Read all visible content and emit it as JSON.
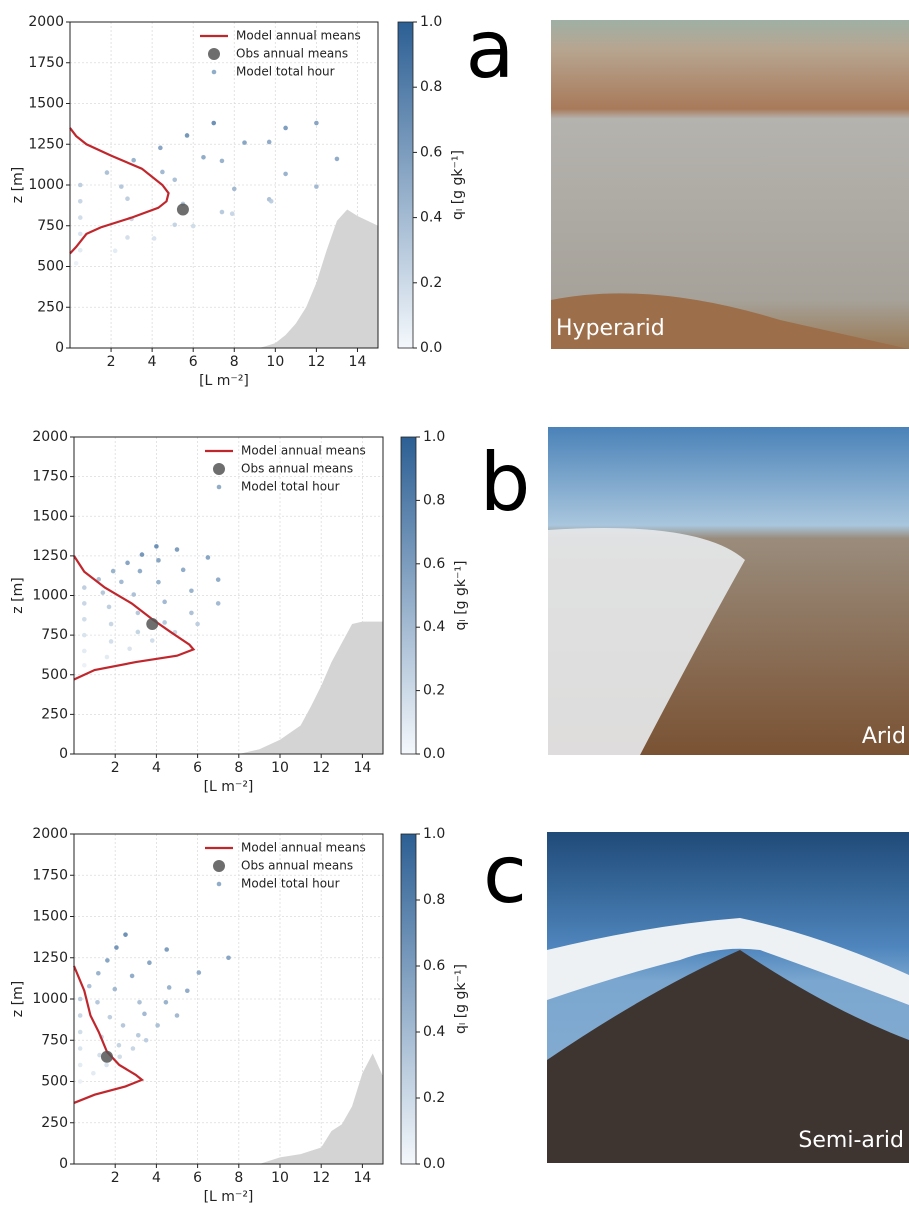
{
  "chart_data": [
    {
      "type": "scatter",
      "letter": "a",
      "photo_label": "Hyperarid",
      "xlabel": "[L m⁻²]",
      "ylabel": "z [m]",
      "xlim": [
        0,
        15
      ],
      "xticks": [
        2,
        4,
        6,
        8,
        10,
        12,
        14
      ],
      "ylim": [
        0,
        2000
      ],
      "yticks": [
        0,
        250,
        500,
        750,
        1000,
        1250,
        1500,
        1750,
        2000
      ],
      "grid": true,
      "legend": "upper right",
      "terrain": {
        "color": "#d4d4d4",
        "x": [
          9.2,
          9.5,
          10,
          10.5,
          11,
          11.5,
          12,
          12.5,
          13,
          13.5,
          14,
          14.5,
          15
        ],
        "values": [
          0,
          10,
          30,
          80,
          150,
          250,
          400,
          600,
          780,
          850,
          810,
          780,
          750
        ]
      },
      "series": [
        {
          "name": "Model annual means",
          "kind": "line",
          "color": "#c0272d",
          "x": [
            0,
            0.3,
            0.8,
            2,
            3.5,
            4.5,
            4.8,
            4.7,
            4.3,
            3,
            1.5,
            0.8,
            0.3,
            0
          ],
          "values": [
            1350,
            1300,
            1250,
            1180,
            1100,
            1000,
            950,
            900,
            860,
            800,
            740,
            700,
            620,
            580
          ]
        },
        {
          "name": "Obs annual means",
          "kind": "point",
          "color": "#555555",
          "x": [
            5.5
          ],
          "values": [
            850
          ]
        },
        {
          "name": "Model total hour",
          "kind": "scatter",
          "x": [
            0.5,
            1.8,
            3.1,
            4.4,
            5.7,
            7,
            0.5,
            2.5,
            4.5,
            6.5,
            8.5,
            10.5,
            0.5,
            2.8,
            5.1,
            7.4,
            9.7,
            12,
            0.5,
            3,
            5.5,
            8,
            10.5,
            13,
            0.5,
            2.8,
            5.1,
            7.4,
            9.7,
            12,
            0.3,
            2.2,
            4.1,
            6,
            7.9,
            9.8
          ],
          "values": [
            1000,
            1076,
            1152,
            1228,
            1304,
            1380,
            900,
            990,
            1080,
            1170,
            1260,
            1350,
            800,
            916,
            1032,
            1148,
            1264,
            1380,
            700,
            792,
            884,
            976,
            1068,
            1160,
            600,
            678,
            756,
            834,
            912,
            990,
            520,
            596,
            672,
            748,
            824,
            900
          ],
          "c": [
            0.3,
            0.4,
            0.5,
            0.6,
            0.7,
            0.75,
            0.25,
            0.35,
            0.45,
            0.55,
            0.6,
            0.65,
            0.2,
            0.3,
            0.4,
            0.5,
            0.55,
            0.6,
            0.15,
            0.25,
            0.35,
            0.45,
            0.5,
            0.55,
            0.1,
            0.18,
            0.26,
            0.34,
            0.4,
            0.45,
            0.05,
            0.1,
            0.15,
            0.2,
            0.25,
            0.3
          ]
        }
      ],
      "colorbar": {
        "label": "qₗ [g gk⁻¹]",
        "colormap": [
          "#f4f8fc",
          "#2c5f94"
        ],
        "lim": [
          0,
          1
        ],
        "ticks": [
          {
            "value": 0,
            "label": "0.0"
          },
          0.2,
          0.4,
          0.6,
          0.8,
          {
            "value": 1,
            "label": "1.0"
          }
        ]
      }
    },
    {
      "type": "scatter",
      "letter": "b",
      "photo_label": "Arid",
      "xlabel": "[L m⁻²]",
      "ylabel": "z [m]",
      "xlim": [
        0,
        15
      ],
      "xticks": [
        2,
        4,
        6,
        8,
        10,
        12,
        14
      ],
      "ylim": [
        0,
        2000
      ],
      "yticks": [
        0,
        250,
        500,
        750,
        1000,
        1250,
        1500,
        1750,
        2000
      ],
      "grid": true,
      "legend": "upper right",
      "terrain": {
        "color": "#d4d4d4",
        "x": [
          8,
          9,
          10,
          11,
          11.5,
          12,
          12.5,
          13,
          13.5,
          14,
          15
        ],
        "values": [
          0,
          30,
          90,
          180,
          300,
          430,
          580,
          700,
          820,
          835,
          835
        ]
      },
      "series": [
        {
          "name": "Model annual means",
          "kind": "line",
          "color": "#c0272d",
          "x": [
            0,
            0.5,
            1.5,
            2.8,
            3.8,
            4.8,
            5.6,
            5.8,
            5,
            3,
            1,
            0
          ],
          "values": [
            1250,
            1150,
            1050,
            950,
            850,
            760,
            690,
            660,
            620,
            580,
            530,
            470
          ]
        },
        {
          "name": "Obs annual means",
          "kind": "point",
          "color": "#555555",
          "x": [
            3.8
          ],
          "values": [
            820
          ]
        },
        {
          "name": "Model total hour",
          "kind": "scatter",
          "x": [
            0.5,
            1.2,
            1.9,
            2.6,
            3.3,
            4,
            0.5,
            1.4,
            2.3,
            3.2,
            4.1,
            5,
            0.5,
            1.7,
            2.9,
            4.1,
            5.3,
            6.5,
            0.5,
            1.8,
            3.1,
            4.4,
            5.7,
            7,
            0.5,
            1.8,
            3.1,
            4.4,
            5.7,
            7,
            0.5,
            1.6,
            2.7,
            3.8,
            4.9,
            6
          ],
          "values": [
            1050,
            1102,
            1154,
            1206,
            1258,
            1310,
            950,
            1018,
            1086,
            1154,
            1222,
            1290,
            850,
            928,
            1006,
            1084,
            1162,
            1240,
            750,
            820,
            890,
            960,
            1030,
            1100,
            650,
            710,
            770,
            830,
            890,
            950,
            560,
            612,
            664,
            716,
            768,
            820
          ],
          "c": [
            0.3,
            0.4,
            0.5,
            0.6,
            0.7,
            0.75,
            0.25,
            0.35,
            0.45,
            0.55,
            0.6,
            0.65,
            0.2,
            0.3,
            0.4,
            0.5,
            0.55,
            0.6,
            0.15,
            0.25,
            0.35,
            0.45,
            0.5,
            0.55,
            0.1,
            0.18,
            0.26,
            0.34,
            0.4,
            0.45,
            0.05,
            0.1,
            0.15,
            0.2,
            0.25,
            0.3
          ]
        }
      ],
      "colorbar": {
        "label": "qₗ [g gk⁻¹]",
        "colormap": [
          "#f4f8fc",
          "#2c5f94"
        ],
        "lim": [
          0,
          1
        ],
        "ticks": [
          {
            "value": 0,
            "label": "0.0"
          },
          0.2,
          0.4,
          0.6,
          0.8,
          {
            "value": 1,
            "label": "1.0"
          }
        ]
      }
    },
    {
      "type": "scatter",
      "letter": "c",
      "photo_label": "Semi-arid",
      "xlabel": "[L m⁻²]",
      "ylabel": "z [m]",
      "xlim": [
        0,
        15
      ],
      "xticks": [
        2,
        4,
        6,
        8,
        10,
        12,
        14
      ],
      "ylim": [
        0,
        2000
      ],
      "yticks": [
        0,
        250,
        500,
        750,
        1000,
        1250,
        1500,
        1750,
        2000
      ],
      "grid": true,
      "legend": "upper right",
      "terrain": {
        "color": "#d4d4d4",
        "x": [
          9,
          10,
          11,
          12,
          12.5,
          13,
          13.5,
          14,
          14.5,
          15
        ],
        "values": [
          0,
          40,
          60,
          100,
          200,
          240,
          350,
          550,
          670,
          530
        ]
      },
      "series": [
        {
          "name": "Model annual means",
          "kind": "line",
          "color": "#c0272d",
          "x": [
            0,
            0.5,
            0.8,
            1.2,
            1.6,
            2.2,
            3,
            3.3,
            2.5,
            1,
            0
          ],
          "values": [
            1200,
            1050,
            900,
            800,
            680,
            600,
            540,
            510,
            470,
            420,
            370
          ]
        },
        {
          "name": "Obs annual means",
          "kind": "point",
          "color": "#555555",
          "x": [
            1.6
          ],
          "values": [
            650
          ]
        },
        {
          "name": "Model total hour",
          "kind": "scatter",
          "x": [
            0.3,
            0.74,
            1.18,
            1.62,
            2.06,
            2.5,
            0.3,
            1.14,
            1.98,
            2.82,
            3.66,
            4.5,
            0.3,
            1.74,
            3.18,
            4.62,
            6.06,
            7.5,
            0.3,
            1.34,
            2.38,
            3.42,
            4.46,
            5.5,
            0.3,
            1.24,
            2.18,
            3.12,
            4.06,
            5,
            0.3,
            0.94,
            1.58,
            2.22,
            2.86,
            3.5
          ],
          "values": [
            1000,
            1078,
            1156,
            1234,
            1312,
            1390,
            900,
            980,
            1060,
            1140,
            1220,
            1300,
            800,
            890,
            980,
            1070,
            1160,
            1250,
            700,
            770,
            840,
            910,
            980,
            1050,
            600,
            660,
            720,
            780,
            840,
            900,
            500,
            550,
            600,
            650,
            700,
            750
          ],
          "c": [
            0.3,
            0.4,
            0.5,
            0.6,
            0.7,
            0.75,
            0.25,
            0.35,
            0.45,
            0.55,
            0.6,
            0.65,
            0.2,
            0.3,
            0.4,
            0.5,
            0.55,
            0.6,
            0.15,
            0.25,
            0.35,
            0.45,
            0.5,
            0.55,
            0.1,
            0.18,
            0.26,
            0.34,
            0.4,
            0.45,
            0.05,
            0.1,
            0.15,
            0.2,
            0.25,
            0.3
          ]
        }
      ],
      "colorbar": {
        "label": "qₗ [g gk⁻¹]",
        "colormap": [
          "#f4f8fc",
          "#2c5f94"
        ],
        "lim": [
          0,
          1
        ],
        "ticks": [
          {
            "value": 0,
            "label": "0.0"
          },
          0.2,
          0.4,
          0.6,
          0.8,
          {
            "value": 1,
            "label": "1.0"
          }
        ]
      }
    }
  ]
}
